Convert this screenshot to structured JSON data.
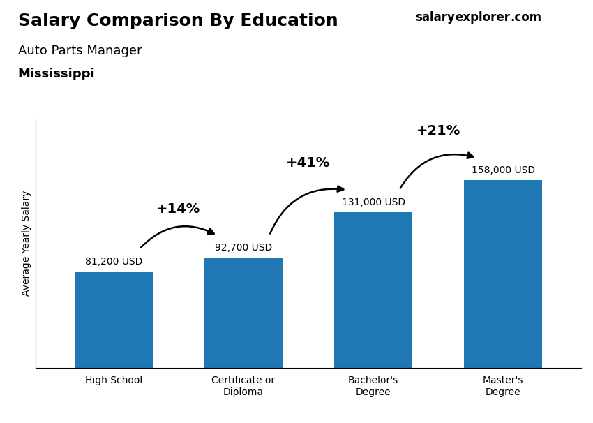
{
  "chart_data": {
    "type": "bar",
    "title": "Salary Comparison By Education",
    "subtitle": [
      "Auto Parts Manager",
      "Mississippi"
    ],
    "watermark": [
      "salary",
      "explorer",
      ".com"
    ],
    "y_label": "Average Yearly Salary",
    "categories": [
      "High School",
      "Certificate or\nDiploma",
      "Bachelor's\nDegree",
      "Master's\nDegree"
    ],
    "values": [
      81200,
      92700,
      131000,
      158000
    ],
    "value_labels": [
      "81,200 USD",
      "92,700 USD",
      "131,000 USD",
      "158,000 USD"
    ],
    "data_labels": true,
    "annotations": [
      {
        "text": "+14%",
        "from": "High School",
        "to": "Certificate or\nDiploma"
      },
      {
        "text": "+41%",
        "from": "Certificate or\nDiploma",
        "to": "Bachelor's\nDegree"
      },
      {
        "text": "+21%",
        "from": "Bachelor's\nDegree",
        "to": "Master's\nDegree"
      }
    ],
    "ylim": [
      0,
      210000
    ],
    "tick_labels": "x",
    "grid": false
  }
}
